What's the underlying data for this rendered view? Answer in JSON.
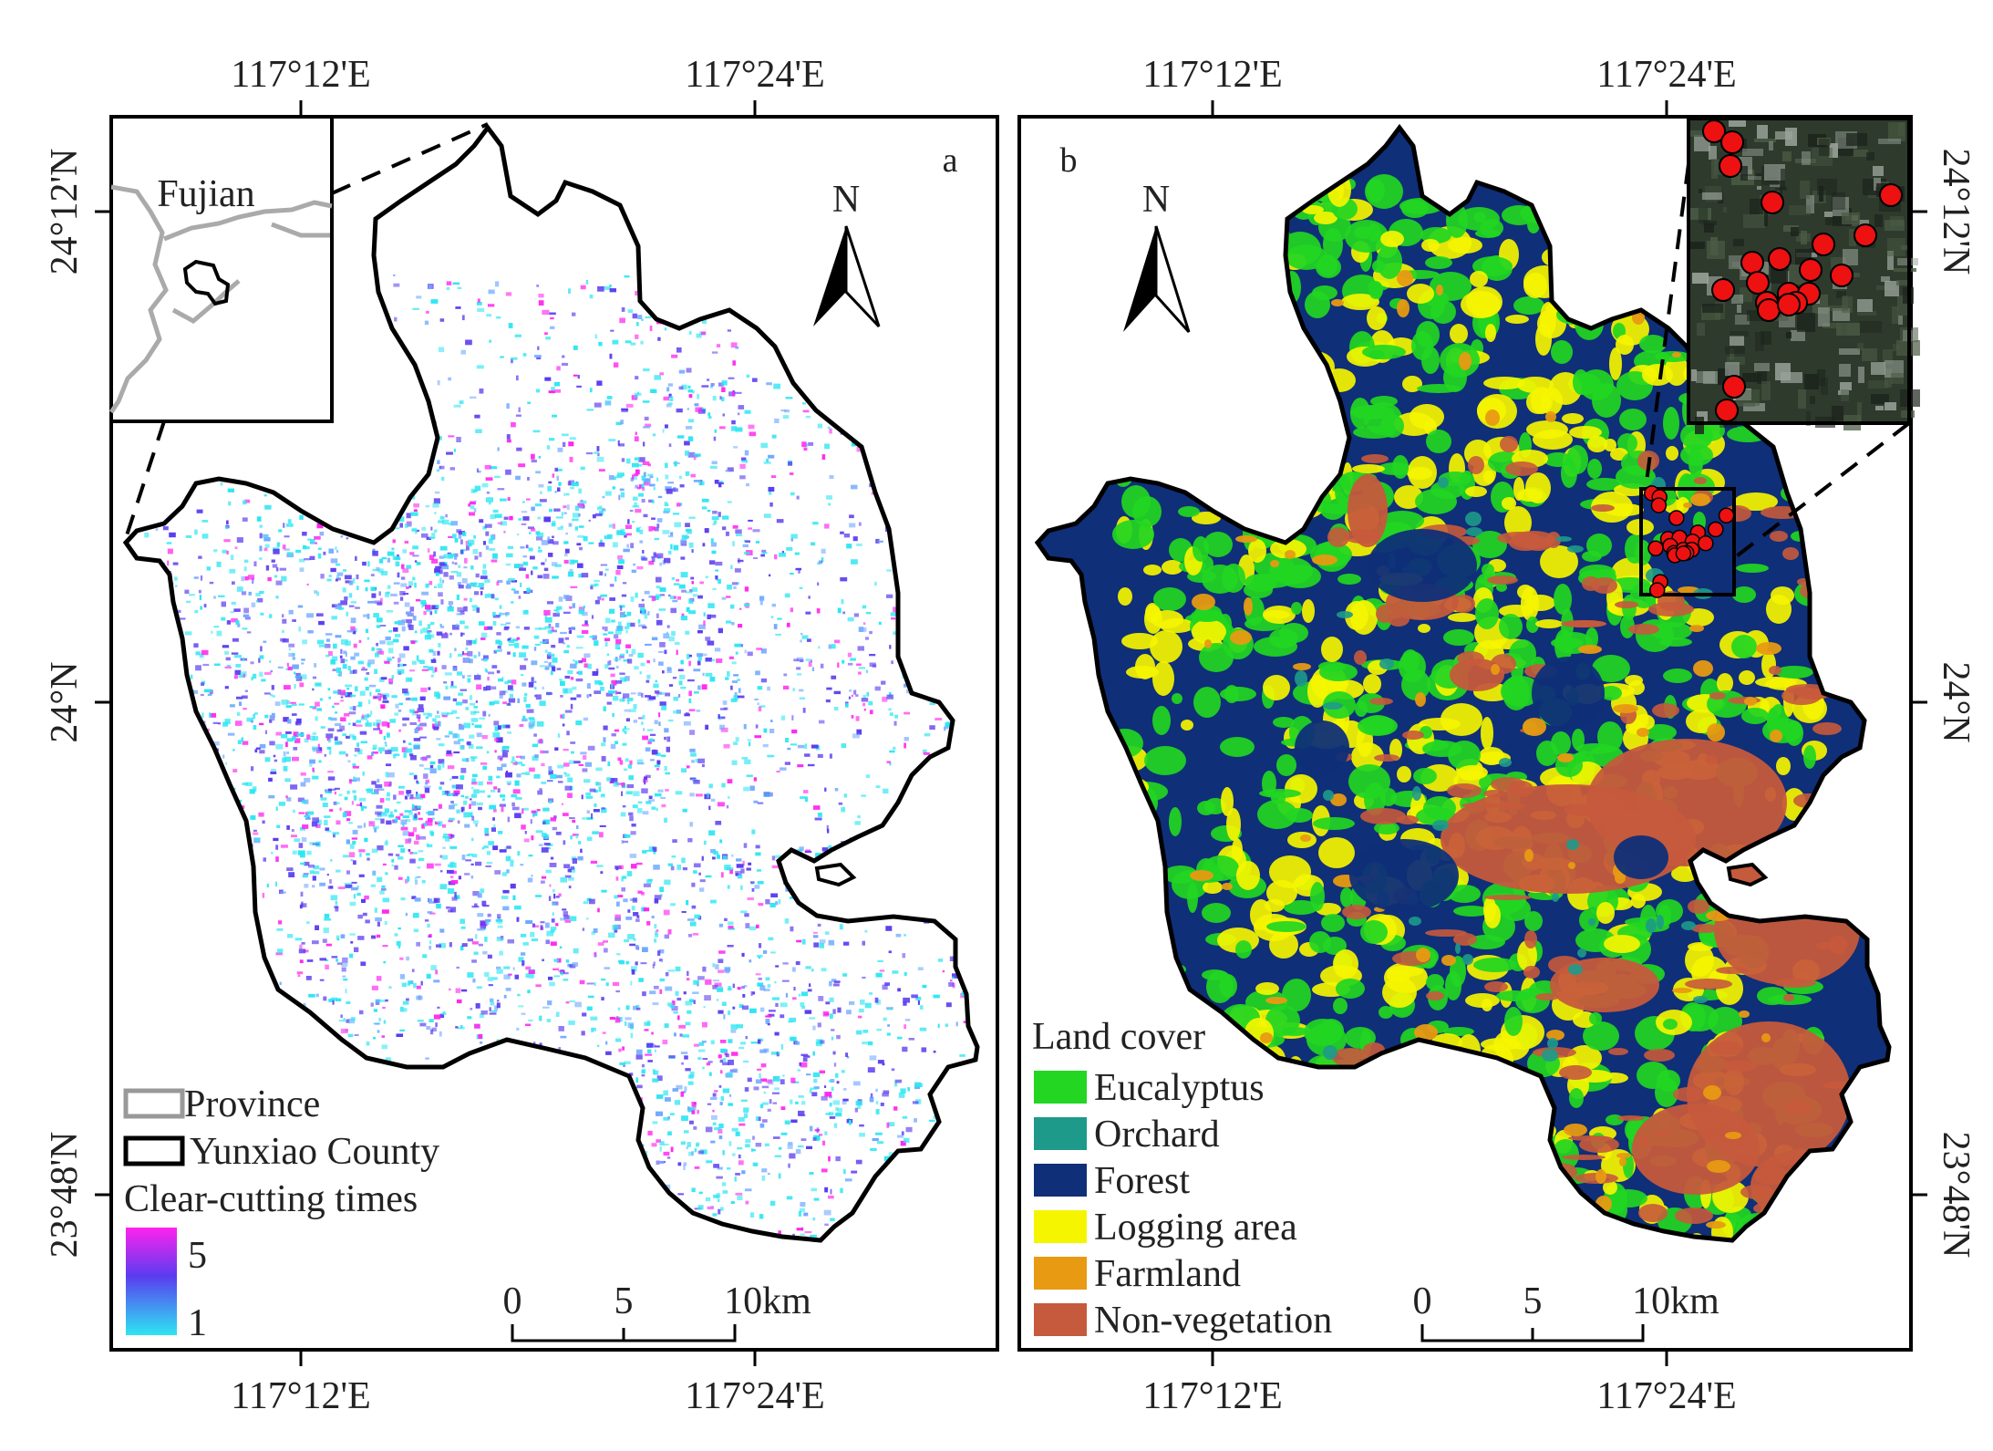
{
  "panel_a": {
    "letter": "a",
    "inset_label": "Fujian",
    "north": "N",
    "top_ticks": [
      "117°12'E",
      "117°24'E"
    ],
    "bottom_ticks": [
      "117°12'E",
      "117°24'E"
    ],
    "left_ticks": [
      "24°12'N",
      "24°N",
      "23°48'N"
    ],
    "legend": {
      "province": "Province",
      "county": "Yunxiao County",
      "times_title": "Clear-cutting times",
      "max": "5",
      "min": "1"
    },
    "scale": [
      "0",
      "5",
      "10km"
    ],
    "colors": {
      "low": "#2ee6f2",
      "mid": "#5a3cf0",
      "high": "#ff22ee"
    }
  },
  "panel_b": {
    "letter": "b",
    "north": "N",
    "top_ticks": [
      "117°12'E",
      "117°24'E"
    ],
    "bottom_ticks": [
      "117°12'E",
      "117°24'E"
    ],
    "right_ticks": [
      "24°12'N",
      "24°N",
      "23°48'N"
    ],
    "legend_title": "Land cover",
    "classes": [
      {
        "label": "Eucalyptus",
        "color": "#22d622"
      },
      {
        "label": "Orchard",
        "color": "#1e9a8a"
      },
      {
        "label": "Forest",
        "color": "#0f2f78"
      },
      {
        "label": "Logging area",
        "color": "#f5f500"
      },
      {
        "label": "Farmland",
        "color": "#e89a12"
      },
      {
        "label": "Non-vegetation",
        "color": "#c65a3c"
      }
    ],
    "scale": [
      "0",
      "5",
      "10km"
    ],
    "sample_marker_color": "#ee1111"
  }
}
